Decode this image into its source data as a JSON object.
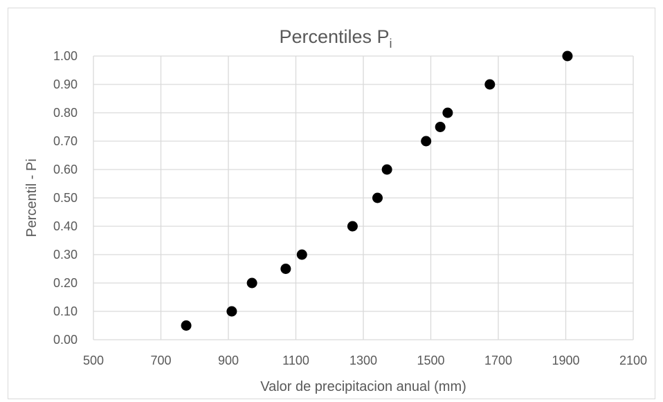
{
  "chart_data": {
    "type": "scatter",
    "title": "Percentiles P",
    "title_subscript": "i",
    "xlabel": "Valor de precipitacion anual (mm)",
    "ylabel": "Percentil - Pi",
    "xlim": [
      500,
      2100
    ],
    "ylim": [
      0,
      1
    ],
    "xticks": [
      "500",
      "700",
      "900",
      "1100",
      "1300",
      "1500",
      "1700",
      "1900",
      "2100"
    ],
    "yticks": [
      "0.00",
      "0.10",
      "0.20",
      "0.30",
      "0.40",
      "0.50",
      "0.60",
      "0.70",
      "0.80",
      "0.90",
      "1.00"
    ],
    "grid": true,
    "legend": "none",
    "marker_color": "#000000",
    "grid_color": "#d9d9d9",
    "points": [
      {
        "x": 775,
        "y": 0.05
      },
      {
        "x": 910,
        "y": 0.1
      },
      {
        "x": 970,
        "y": 0.2
      },
      {
        "x": 1070,
        "y": 0.25
      },
      {
        "x": 1118,
        "y": 0.3
      },
      {
        "x": 1268,
        "y": 0.4
      },
      {
        "x": 1342,
        "y": 0.5
      },
      {
        "x": 1370,
        "y": 0.6
      },
      {
        "x": 1486,
        "y": 0.7
      },
      {
        "x": 1528,
        "y": 0.75
      },
      {
        "x": 1550,
        "y": 0.8
      },
      {
        "x": 1675,
        "y": 0.9
      },
      {
        "x": 1905,
        "y": 1.0
      }
    ]
  }
}
